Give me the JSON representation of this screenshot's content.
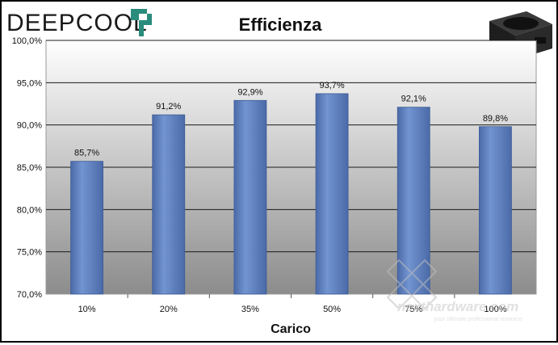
{
  "brand": {
    "name": "DEEPCOOL",
    "color": "#1a1a1a",
    "accent": "#2a8c7c",
    "watermark": "nexthardware.com",
    "watermark_tagline": "your ultimate professional resource"
  },
  "product_image": {
    "icon": "psu-unit-icon"
  },
  "chart_data": {
    "type": "bar",
    "title": "Efficienza",
    "xlabel": "Carico",
    "ylabel": "",
    "categories": [
      "10%",
      "20%",
      "35%",
      "50%",
      "75%",
      "100%"
    ],
    "values": [
      85.7,
      91.2,
      92.9,
      93.7,
      92.1,
      89.8
    ],
    "value_labels": [
      "85,7%",
      "91,2%",
      "92,9%",
      "93,7%",
      "92,1%",
      "89,8%"
    ],
    "ylim": [
      70,
      100
    ],
    "yticks": [
      70,
      75,
      80,
      85,
      90,
      95,
      100
    ],
    "ytick_labels": [
      "70,0%",
      "75,0%",
      "80,0%",
      "85,0%",
      "90,0%",
      "95,0%",
      "100,0%"
    ],
    "grid": true,
    "legend": "none",
    "bar_color": "#5a7fc0",
    "plot_background_top": "#ffffff",
    "plot_background_bottom": "#8c8c8c"
  }
}
